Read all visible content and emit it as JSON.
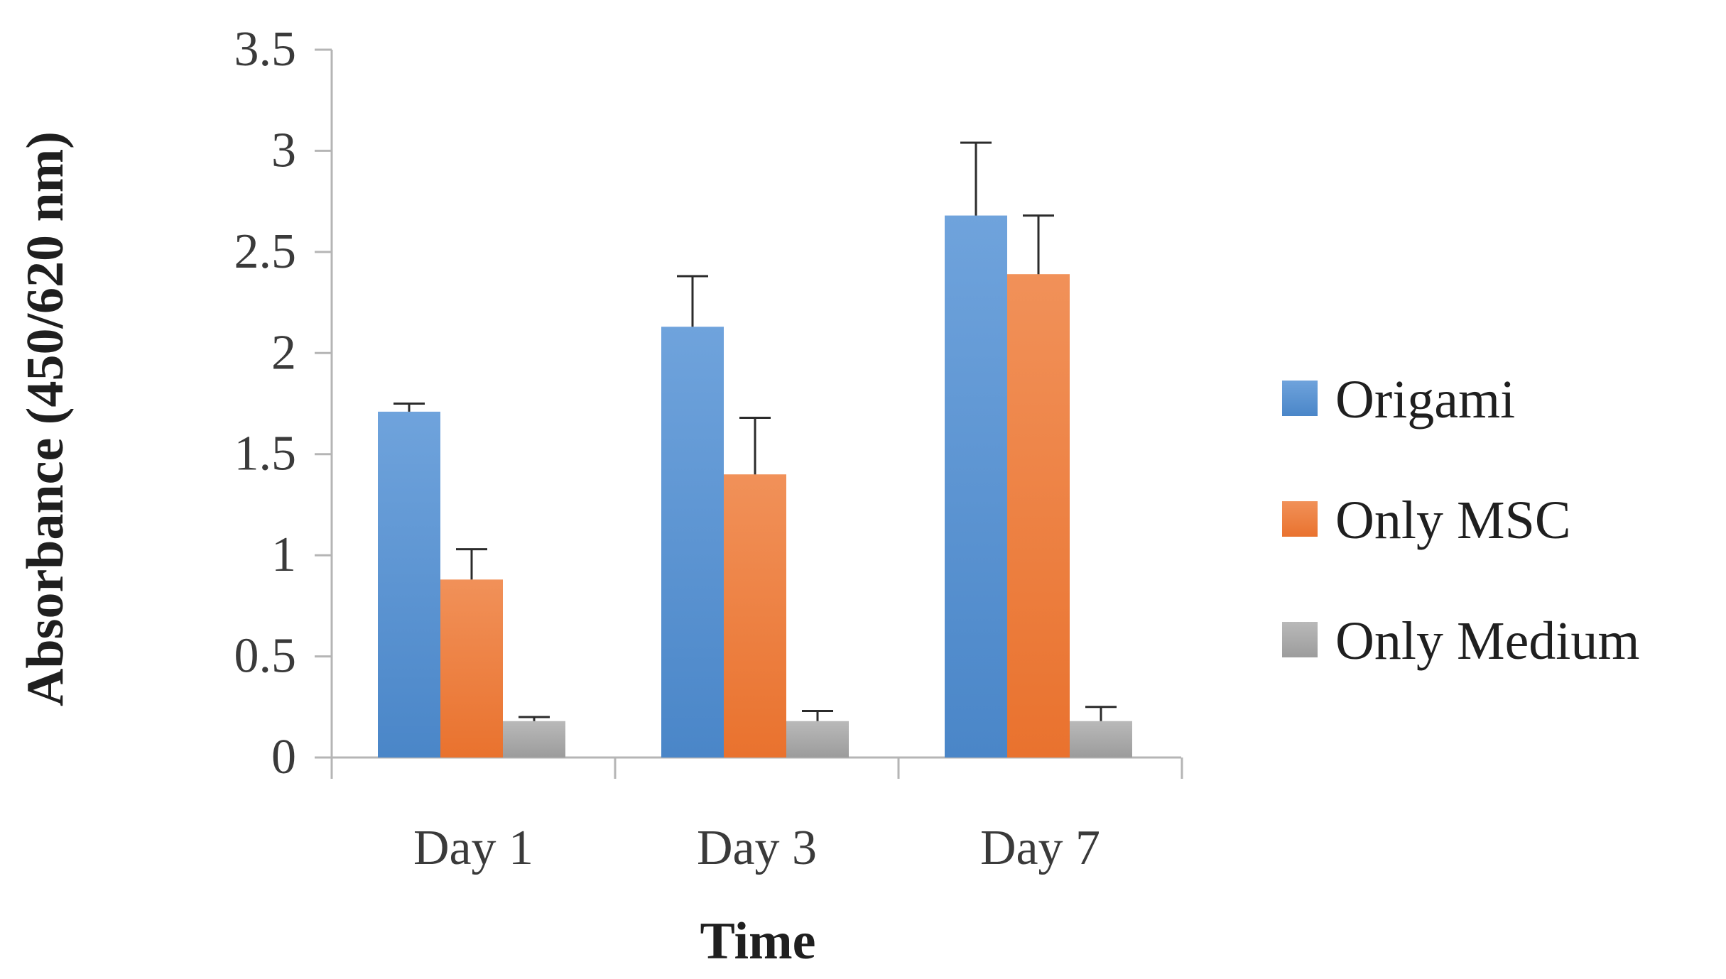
{
  "chart_data": {
    "type": "bar",
    "title": "",
    "xlabel": "Time",
    "ylabel": "Absorbance (450/620 nm)",
    "ylim": [
      0,
      3.5
    ],
    "yticks": [
      "0",
      "0.5",
      "1",
      "1.5",
      "2",
      "2.5",
      "3",
      "3.5"
    ],
    "ytick_values": [
      0,
      0.5,
      1,
      1.5,
      2,
      2.5,
      3,
      3.5
    ],
    "categories": [
      "Day 1",
      "Day 3",
      "Day 7"
    ],
    "grid": false,
    "legend_position": "right",
    "series": [
      {
        "name": "Origami",
        "color": "#4a86c8",
        "color_light": "#6fa3dc",
        "values": [
          1.71,
          2.13,
          2.68
        ],
        "errors": [
          0.04,
          0.25,
          0.36
        ]
      },
      {
        "name": "Only MSC",
        "color": "#e9722e",
        "color_light": "#f19159",
        "values": [
          0.88,
          1.4,
          2.39
        ],
        "errors": [
          0.15,
          0.28,
          0.29
        ]
      },
      {
        "name": "Only Medium",
        "color": "#9c9c9c",
        "color_light": "#b9b9b9",
        "values": [
          0.18,
          0.18,
          0.18
        ],
        "errors": [
          0.02,
          0.05,
          0.07
        ]
      }
    ]
  }
}
